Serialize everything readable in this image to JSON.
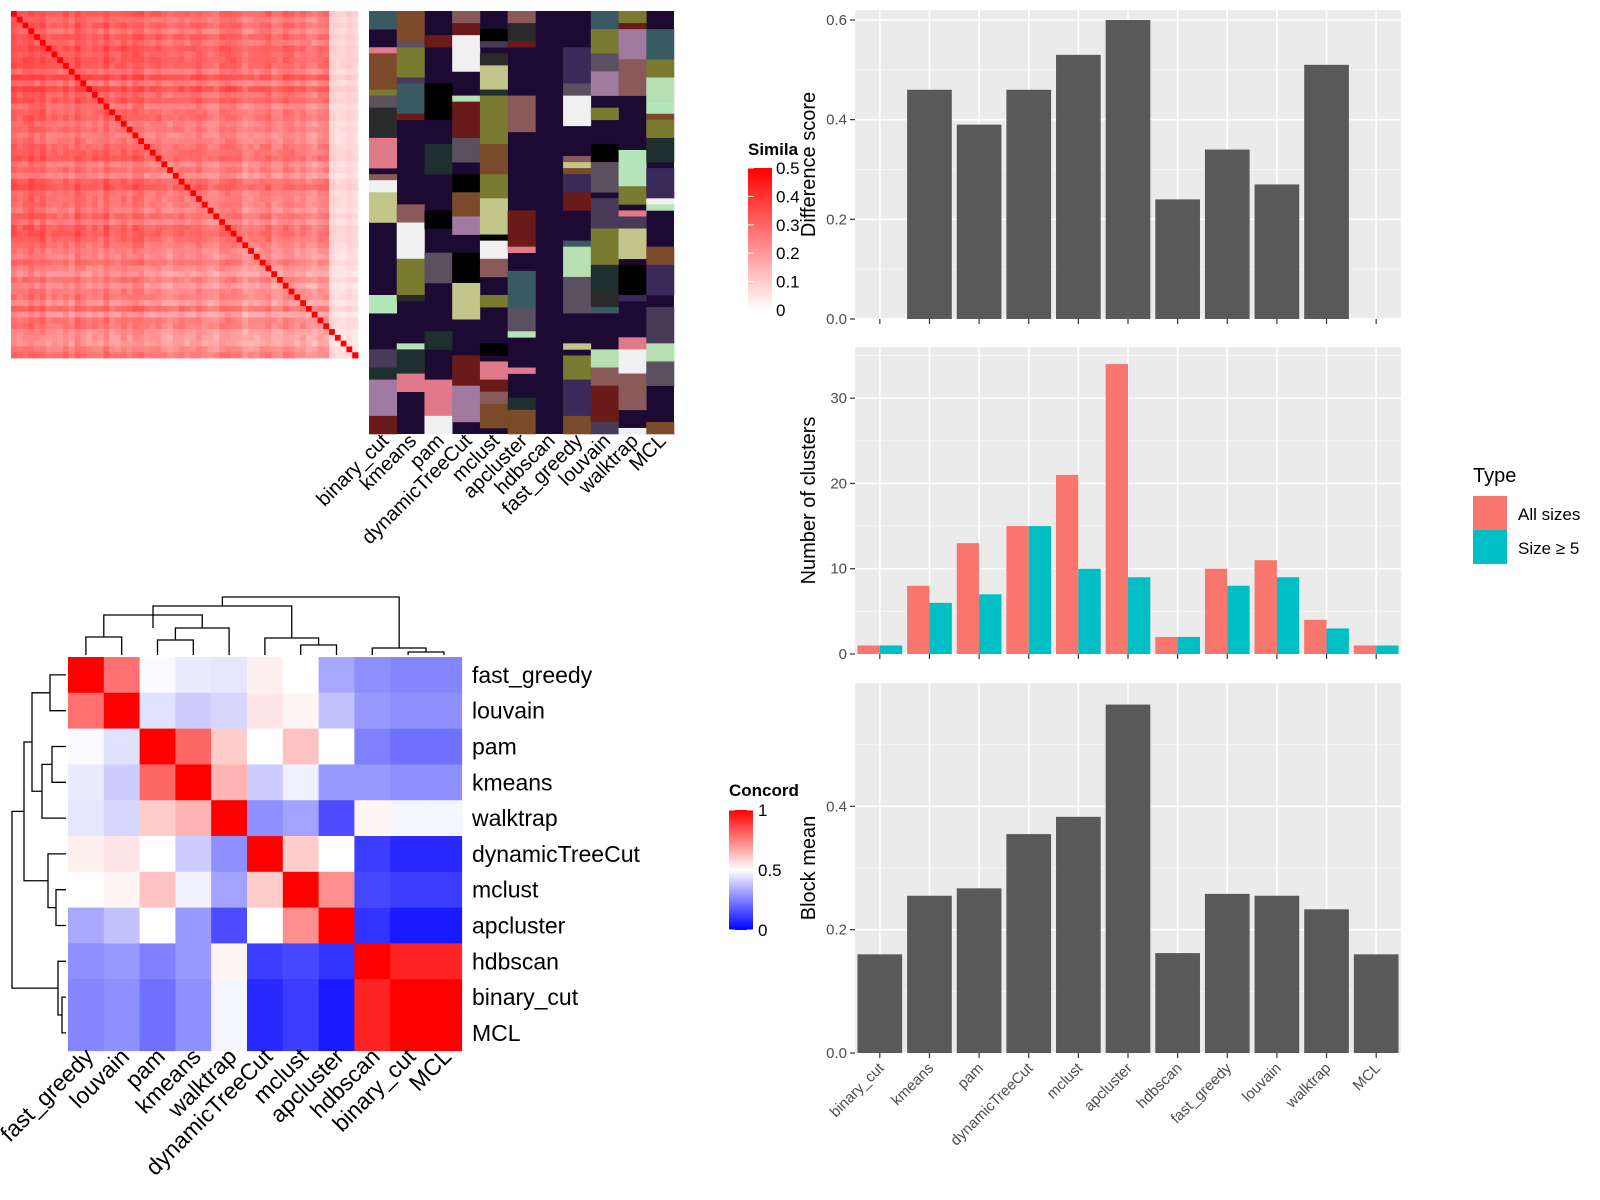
{
  "methods_left": [
    "binary_cut",
    "kmeans",
    "pam",
    "dynamicTreeCut",
    "mclust",
    "apcluster",
    "hdbscan",
    "fast_greedy",
    "louvain",
    "walktrap",
    "MCL"
  ],
  "similarity_legend": {
    "title": "Simila",
    "ticks": [
      "0.5",
      "0.4",
      "0.3",
      "0.2",
      "0.1",
      "0"
    ]
  },
  "concordance_legend": {
    "title": "Concord",
    "ticks": [
      "1",
      "0.5",
      "0"
    ]
  },
  "concordance_order": [
    "fast_greedy",
    "louvain",
    "pam",
    "kmeans",
    "walktrap",
    "dynamicTreeCut",
    "mclust",
    "apcluster",
    "hdbscan",
    "binary_cut",
    "MCL"
  ],
  "chart_data": [
    {
      "type": "bar",
      "categories": [
        "binary_cut",
        "kmeans",
        "pam",
        "dynamicTreeCut",
        "mclust",
        "apcluster",
        "hdbscan",
        "fast_greedy",
        "louvain",
        "walktrap",
        "MCL"
      ],
      "values": [
        0,
        0.46,
        0.39,
        0.46,
        0.53,
        0.6,
        0.24,
        0.34,
        0.27,
        0.51,
        0
      ],
      "ylabel": "Difference score",
      "ylim": [
        0,
        0.62
      ],
      "yticks": [
        "0.0",
        "0.2",
        "0.4",
        "0.6"
      ],
      "color": "#595959"
    },
    {
      "type": "bar",
      "categories": [
        "binary_cut",
        "kmeans",
        "pam",
        "dynamicTreeCut",
        "mclust",
        "apcluster",
        "hdbscan",
        "fast_greedy",
        "louvain",
        "walktrap",
        "MCL"
      ],
      "series": [
        {
          "name": "All sizes",
          "values": [
            1,
            8,
            13,
            15,
            21,
            34,
            2,
            10,
            11,
            4,
            1
          ],
          "color": "#F8766D"
        },
        {
          "name": "Size ≥ 5",
          "values": [
            1,
            6,
            7,
            15,
            10,
            9,
            2,
            8,
            9,
            3,
            1
          ],
          "color": "#00BFC4"
        }
      ],
      "ylabel": "Number of clusters",
      "ylim": [
        0,
        36
      ],
      "yticks": [
        "0",
        "10",
        "20",
        "30"
      ],
      "legend_title": "Type"
    },
    {
      "type": "bar",
      "categories": [
        "binary_cut",
        "kmeans",
        "pam",
        "dynamicTreeCut",
        "mclust",
        "apcluster",
        "hdbscan",
        "fast_greedy",
        "louvain",
        "walktrap",
        "MCL"
      ],
      "values": [
        0.16,
        0.255,
        0.267,
        0.355,
        0.383,
        0.565,
        0.162,
        0.258,
        0.255,
        0.233,
        0.16
      ],
      "ylabel": "Block mean",
      "ylim": [
        0,
        0.6
      ],
      "yticks": [
        "0.0",
        "0.2",
        "0.4"
      ],
      "color": "#595959"
    },
    {
      "type": "heatmap",
      "rows": [
        "fast_greedy",
        "louvain",
        "pam",
        "kmeans",
        "walktrap",
        "dynamicTreeCut",
        "mclust",
        "apcluster",
        "hdbscan",
        "binary_cut",
        "MCL"
      ],
      "cols": [
        "fast_greedy",
        "louvain",
        "pam",
        "kmeans",
        "walktrap",
        "dynamicTreeCut",
        "mclust",
        "apcluster",
        "hdbscan",
        "binary_cut",
        "MCL"
      ],
      "values": [
        [
          1.0,
          0.78,
          0.49,
          0.46,
          0.45,
          0.53,
          0.5,
          0.33,
          0.28,
          0.26,
          0.26
        ],
        [
          0.78,
          1.0,
          0.44,
          0.4,
          0.42,
          0.55,
          0.52,
          0.38,
          0.3,
          0.28,
          0.28
        ],
        [
          0.49,
          0.44,
          1.0,
          0.8,
          0.6,
          0.5,
          0.62,
          0.5,
          0.25,
          0.22,
          0.22
        ],
        [
          0.46,
          0.4,
          0.8,
          1.0,
          0.65,
          0.4,
          0.47,
          0.3,
          0.3,
          0.28,
          0.28
        ],
        [
          0.45,
          0.42,
          0.6,
          0.65,
          1.0,
          0.28,
          0.32,
          0.15,
          0.52,
          0.48,
          0.48
        ],
        [
          0.53,
          0.55,
          0.5,
          0.4,
          0.28,
          1.0,
          0.6,
          0.5,
          0.12,
          0.08,
          0.08
        ],
        [
          0.5,
          0.52,
          0.62,
          0.47,
          0.32,
          0.6,
          1.0,
          0.72,
          0.14,
          0.12,
          0.12
        ],
        [
          0.33,
          0.38,
          0.5,
          0.3,
          0.15,
          0.5,
          0.72,
          1.0,
          0.1,
          0.05,
          0.05
        ],
        [
          0.28,
          0.3,
          0.25,
          0.3,
          0.52,
          0.12,
          0.14,
          0.1,
          1.0,
          0.93,
          0.93
        ],
        [
          0.26,
          0.28,
          0.22,
          0.28,
          0.48,
          0.08,
          0.12,
          0.05,
          0.93,
          1.0,
          1.0
        ],
        [
          0.26,
          0.28,
          0.22,
          0.28,
          0.48,
          0.08,
          0.12,
          0.05,
          0.93,
          1.0,
          1.0
        ]
      ]
    }
  ]
}
